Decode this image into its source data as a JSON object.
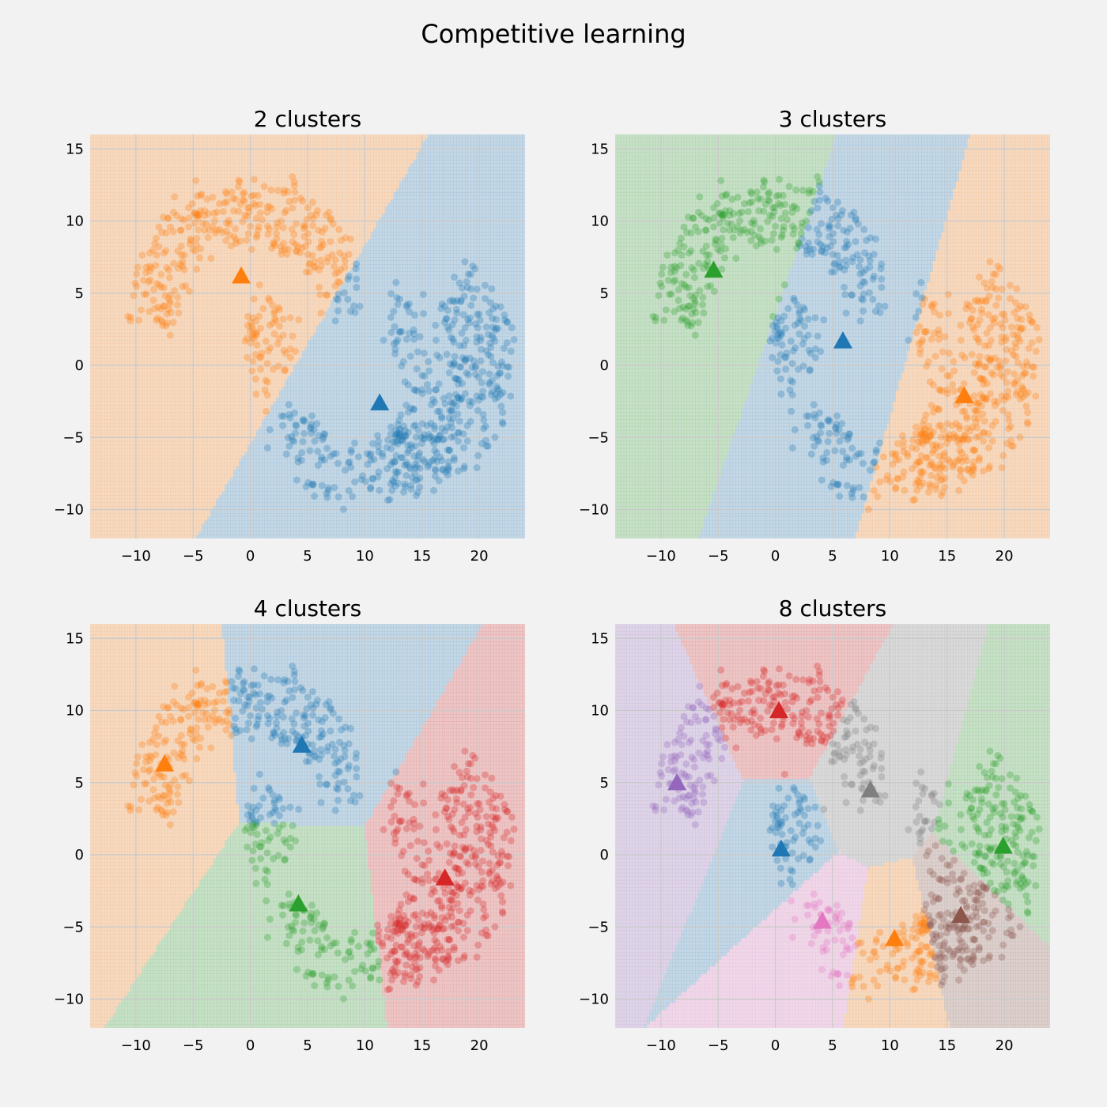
{
  "figure": {
    "title": "Competitive learning",
    "palette": {
      "blue": "#1f77b4",
      "orange": "#ff7f0e",
      "green": "#2ca02c",
      "red": "#d62728",
      "purple": "#9467bd",
      "brown": "#8c564b",
      "pink": "#e377c2",
      "gray": "#7f7f7f",
      "background": "#f2f2f2",
      "grid": "#cbcbcb"
    }
  },
  "chart_data": [
    {
      "type": "scatter",
      "title": "2 clusters",
      "xlim": [
        -14,
        24
      ],
      "ylim": [
        -12,
        16
      ],
      "xticks": [
        -10,
        -5,
        0,
        5,
        10,
        15,
        20
      ],
      "yticks": [
        -10,
        -5,
        0,
        5,
        10,
        15
      ],
      "grid": true,
      "centroids": [
        {
          "x": 11.3,
          "y": -2.6,
          "color": "#1f77b4"
        },
        {
          "x": -0.8,
          "y": 6.2,
          "color": "#ff7f0e"
        }
      ]
    },
    {
      "type": "scatter",
      "title": "3 clusters",
      "xlim": [
        -14,
        24
      ],
      "ylim": [
        -12,
        16
      ],
      "xticks": [
        -10,
        -5,
        0,
        5,
        10,
        15,
        20
      ],
      "yticks": [
        -10,
        -5,
        0,
        5,
        10,
        15
      ],
      "grid": true,
      "centroids": [
        {
          "x": 5.9,
          "y": 1.7,
          "color": "#1f77b4"
        },
        {
          "x": 16.5,
          "y": -2.1,
          "color": "#ff7f0e"
        },
        {
          "x": -5.4,
          "y": 6.6,
          "color": "#2ca02c"
        }
      ]
    },
    {
      "type": "scatter",
      "title": "4 clusters",
      "xlim": [
        -14,
        24
      ],
      "ylim": [
        -12,
        16
      ],
      "xticks": [
        -10,
        -5,
        0,
        5,
        10,
        15,
        20
      ],
      "yticks": [
        -10,
        -5,
        0,
        5,
        10,
        15
      ],
      "grid": true,
      "centroids": [
        {
          "x": 4.5,
          "y": 7.6,
          "color": "#1f77b4"
        },
        {
          "x": -7.5,
          "y": 6.3,
          "color": "#ff7f0e"
        },
        {
          "x": 4.2,
          "y": -3.4,
          "color": "#2ca02c"
        },
        {
          "x": 17.0,
          "y": -1.6,
          "color": "#d62728"
        }
      ]
    },
    {
      "type": "scatter",
      "title": "8 clusters",
      "xlim": [
        -14,
        24
      ],
      "ylim": [
        -12,
        16
      ],
      "xticks": [
        -10,
        -5,
        0,
        5,
        10,
        15,
        20
      ],
      "yticks": [
        -10,
        -5,
        0,
        5,
        10,
        15
      ],
      "grid": true,
      "centroids": [
        {
          "x": 0.5,
          "y": 0.4,
          "color": "#1f77b4"
        },
        {
          "x": 10.4,
          "y": -5.8,
          "color": "#ff7f0e"
        },
        {
          "x": 19.9,
          "y": 0.6,
          "color": "#2ca02c"
        },
        {
          "x": 0.3,
          "y": 10.0,
          "color": "#d62728"
        },
        {
          "x": -8.6,
          "y": 5.0,
          "color": "#9467bd"
        },
        {
          "x": 16.2,
          "y": -4.2,
          "color": "#8c564b"
        },
        {
          "x": 4.1,
          "y": -4.6,
          "color": "#e377c2"
        },
        {
          "x": 8.3,
          "y": 4.5,
          "color": "#7f7f7f"
        }
      ]
    }
  ]
}
